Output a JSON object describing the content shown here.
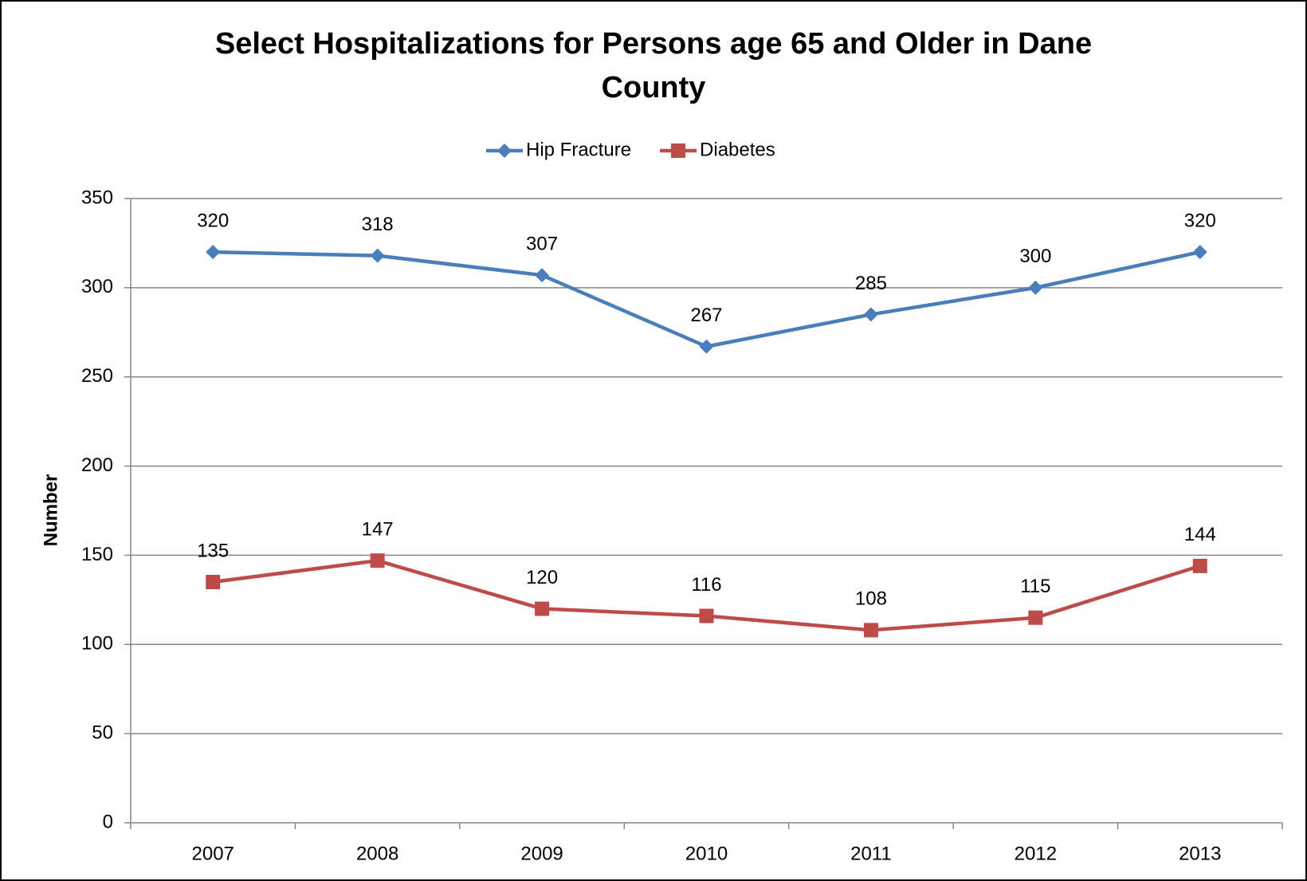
{
  "chart_data": {
    "type": "line",
    "title": "Select Hospitalizations for Persons age 65 and Older in Dane County",
    "y_label": "Number",
    "categories": [
      "2007",
      "2008",
      "2009",
      "2010",
      "2011",
      "2012",
      "2013"
    ],
    "series": [
      {
        "name": "Hip Fracture",
        "color": "#4a7ebb",
        "marker": "diamond",
        "values": [
          320,
          318,
          307,
          267,
          285,
          300,
          320
        ]
      },
      {
        "name": "Diabetes",
        "color": "#be4b48",
        "marker": "square",
        "values": [
          135,
          147,
          120,
          116,
          108,
          115,
          144
        ]
      }
    ],
    "ylim": [
      0,
      350
    ],
    "yticks": [
      0,
      50,
      100,
      150,
      200,
      250,
      300,
      350
    ],
    "grid": true,
    "legend": "top"
  }
}
